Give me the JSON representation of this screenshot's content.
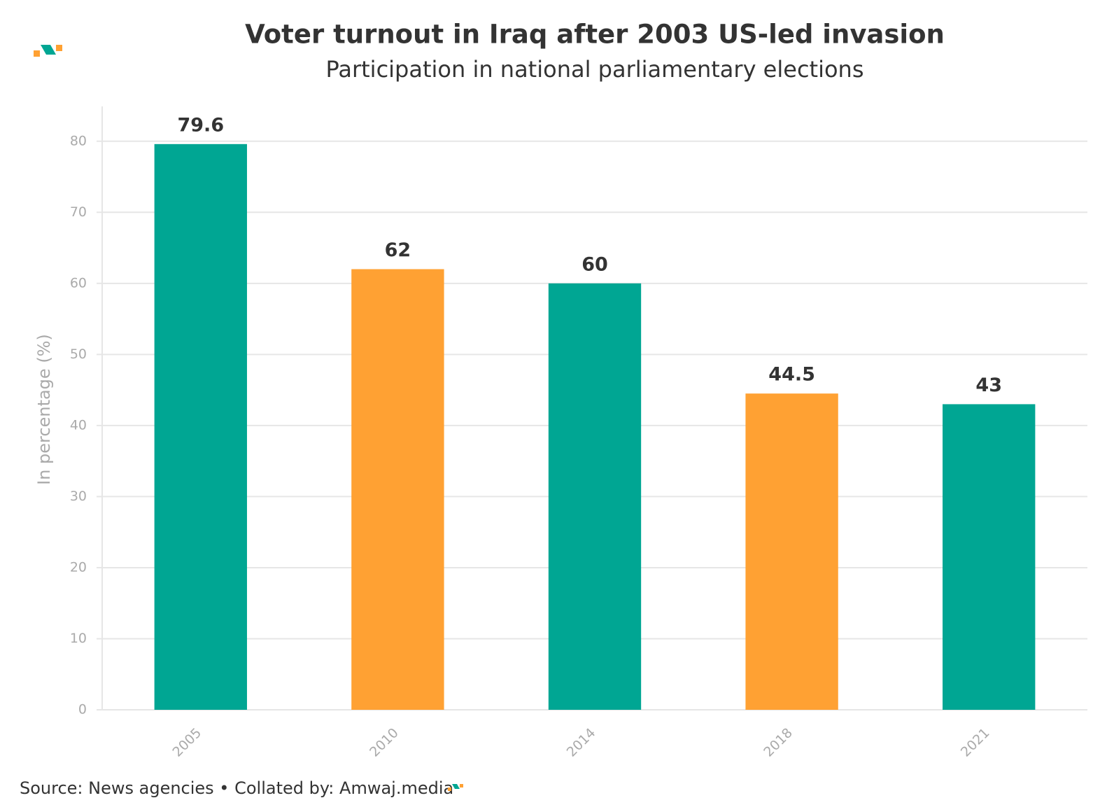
{
  "chart_data": {
    "type": "bar",
    "title": "Voter turnout in Iraq after 2003 US-led invasion",
    "subtitle": "Participation in national parliamentary elections",
    "y_label": "In percentage (%)",
    "categories": [
      "2005",
      "2010",
      "2014",
      "2018",
      "2021"
    ],
    "values": [
      79.6,
      62,
      60,
      44.5,
      43
    ],
    "colors": [
      "#00a693",
      "#ffa133",
      "#00a693",
      "#ffa133",
      "#00a693"
    ],
    "ylim": [
      0,
      85
    ],
    "yticks": [
      0,
      10,
      20,
      30,
      40,
      50,
      60,
      70,
      80
    ],
    "grid": true,
    "source": "Source: News agencies • Collated by: Amwaj.media"
  }
}
